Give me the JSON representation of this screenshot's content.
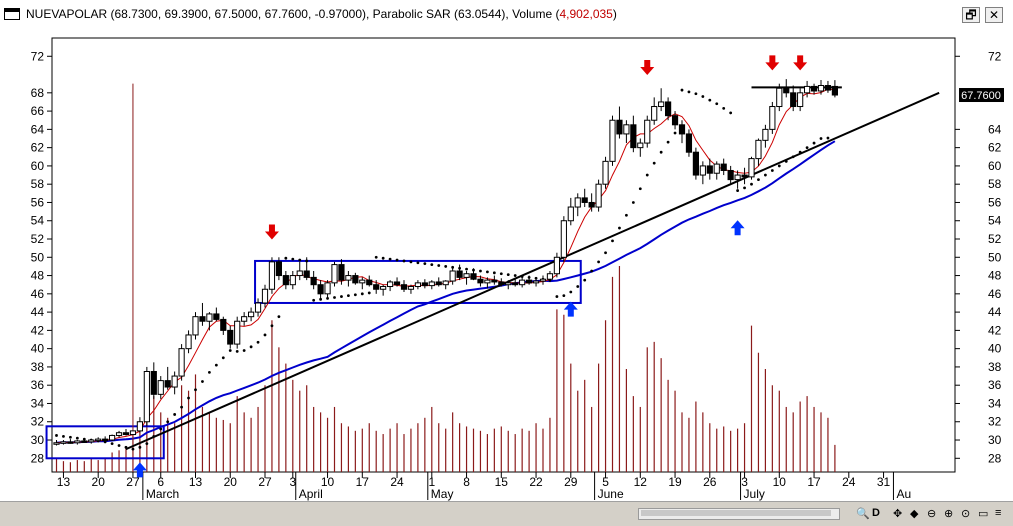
{
  "window": {
    "title_prefix": "NUEVAPOLAR (68.7300, 69.3900, 67.5000, 67.7600, -0.97000), Parabolic SAR (63.0544), Volume (",
    "title_volume": "4,902,035",
    "title_suffix": ")",
    "restore_glyph": "🗗",
    "close_glyph": "✕"
  },
  "scrollbar": {
    "zoom_glyph": "🔍",
    "d_label": "D",
    "icons": [
      "✥",
      "◆",
      "⊖",
      "⊕",
      "⊙",
      "▭",
      "≡"
    ]
  },
  "chart_data": {
    "type": "candlestick",
    "symbol": "NUEVAPOLAR",
    "last_price_label": "67.7600",
    "ylim": [
      26.5,
      74
    ],
    "y_ticks": [
      28,
      30,
      32,
      34,
      36,
      38,
      40,
      42,
      44,
      46,
      48,
      50,
      52,
      54,
      56,
      58,
      60,
      62,
      64,
      66,
      68,
      72
    ],
    "y_ticks_right": [
      28,
      30,
      32,
      34,
      36,
      38,
      40,
      42,
      44,
      46,
      48,
      50,
      52,
      54,
      56,
      58,
      60,
      62,
      64,
      72
    ],
    "x_day_ticks": [
      {
        "i": 1,
        "label": "13"
      },
      {
        "i": 6,
        "label": "20"
      },
      {
        "i": 11,
        "label": "27"
      },
      {
        "i": 15,
        "label": "6"
      },
      {
        "i": 20,
        "label": "13"
      },
      {
        "i": 25,
        "label": "20"
      },
      {
        "i": 30,
        "label": "27"
      },
      {
        "i": 34,
        "label": "3"
      },
      {
        "i": 39,
        "label": "10"
      },
      {
        "i": 44,
        "label": "17"
      },
      {
        "i": 49,
        "label": "24"
      },
      {
        "i": 54,
        "label": "1"
      },
      {
        "i": 59,
        "label": "8"
      },
      {
        "i": 64,
        "label": "15"
      },
      {
        "i": 69,
        "label": "22"
      },
      {
        "i": 74,
        "label": "29"
      },
      {
        "i": 79,
        "label": "5"
      },
      {
        "i": 84,
        "label": "12"
      },
      {
        "i": 89,
        "label": "19"
      },
      {
        "i": 94,
        "label": "26"
      },
      {
        "i": 99,
        "label": "3"
      },
      {
        "i": 104,
        "label": "10"
      },
      {
        "i": 109,
        "label": "17"
      },
      {
        "i": 114,
        "label": "24"
      },
      {
        "i": 119,
        "label": "31"
      }
    ],
    "x_month_ticks": [
      {
        "i": 13,
        "label": "March"
      },
      {
        "i": 35,
        "label": "April"
      },
      {
        "i": 54,
        "label": "May"
      },
      {
        "i": 78,
        "label": "June"
      },
      {
        "i": 99,
        "label": "July"
      },
      {
        "i": 121,
        "label": "Au"
      }
    ],
    "bars": [
      [
        29.6,
        30.0,
        29.4,
        29.7,
        12
      ],
      [
        29.7,
        30.0,
        29.5,
        29.8,
        10
      ],
      [
        29.8,
        30.1,
        29.6,
        29.7,
        9
      ],
      [
        29.7,
        30.0,
        29.5,
        29.9,
        11
      ],
      [
        29.9,
        30.2,
        29.7,
        29.8,
        10
      ],
      [
        29.8,
        30.1,
        29.6,
        30.0,
        12
      ],
      [
        30.0,
        30.3,
        29.8,
        30.1,
        11
      ],
      [
        30.1,
        30.4,
        29.9,
        30.0,
        13
      ],
      [
        30.0,
        30.6,
        29.9,
        30.5,
        18
      ],
      [
        30.5,
        31.0,
        30.3,
        30.8,
        20
      ],
      [
        30.8,
        31.2,
        30.5,
        30.6,
        22
      ],
      [
        30.6,
        69.0,
        29.5,
        31.0,
        36
      ],
      [
        31.0,
        32.5,
        30.8,
        32.0,
        40
      ],
      [
        32.0,
        38.0,
        31.5,
        37.5,
        85
      ],
      [
        37.5,
        38.5,
        34.5,
        35.0,
        70
      ],
      [
        35.0,
        37.0,
        34.5,
        36.5,
        55
      ],
      [
        36.5,
        38.0,
        35.5,
        35.8,
        50
      ],
      [
        35.8,
        37.5,
        35.0,
        37.0,
        45
      ],
      [
        37.0,
        40.5,
        36.5,
        40.0,
        80
      ],
      [
        40.0,
        42.0,
        39.5,
        41.5,
        75
      ],
      [
        41.5,
        44.0,
        41.0,
        43.5,
        90
      ],
      [
        43.5,
        45.0,
        42.5,
        43.0,
        60
      ],
      [
        43.0,
        44.0,
        42.0,
        43.8,
        55
      ],
      [
        43.8,
        44.5,
        43.0,
        43.2,
        50
      ],
      [
        43.2,
        43.5,
        41.5,
        42.0,
        48
      ],
      [
        42.0,
        42.5,
        40.0,
        40.5,
        45
      ],
      [
        40.5,
        43.5,
        40.0,
        43.0,
        70
      ],
      [
        43.0,
        44.0,
        42.5,
        43.5,
        55
      ],
      [
        43.5,
        44.5,
        43.0,
        44.0,
        50
      ],
      [
        44.0,
        45.5,
        43.5,
        45.0,
        60
      ],
      [
        45.0,
        47.0,
        44.5,
        46.5,
        80
      ],
      [
        46.5,
        50.0,
        46.0,
        49.5,
        140
      ],
      [
        49.5,
        50.0,
        47.5,
        48.0,
        115
      ],
      [
        48.0,
        48.5,
        46.5,
        47.0,
        100
      ],
      [
        47.0,
        48.5,
        46.5,
        48.0,
        85
      ],
      [
        48.0,
        49.5,
        47.5,
        48.5,
        75
      ],
      [
        48.5,
        50.0,
        47.5,
        47.8,
        80
      ],
      [
        47.8,
        48.5,
        46.5,
        47.0,
        60
      ],
      [
        47.0,
        47.5,
        45.5,
        46.0,
        55
      ],
      [
        46.0,
        47.5,
        45.5,
        47.2,
        50
      ],
      [
        47.2,
        49.5,
        46.8,
        49.2,
        60
      ],
      [
        49.2,
        49.8,
        47.0,
        47.5,
        45
      ],
      [
        47.5,
        48.5,
        46.8,
        48.0,
        42
      ],
      [
        48.0,
        48.3,
        47.0,
        47.2,
        38
      ],
      [
        47.2,
        47.8,
        46.5,
        47.5,
        40
      ],
      [
        47.5,
        48.0,
        46.8,
        47.0,
        45
      ],
      [
        47.0,
        47.5,
        46.0,
        46.5,
        38
      ],
      [
        46.5,
        47.0,
        45.8,
        46.8,
        35
      ],
      [
        46.8,
        47.5,
        46.3,
        47.3,
        40
      ],
      [
        47.3,
        47.8,
        46.8,
        47.0,
        45
      ],
      [
        47.0,
        47.5,
        46.2,
        46.5,
        35
      ],
      [
        46.5,
        47.0,
        46.0,
        46.8,
        40
      ],
      [
        46.8,
        47.5,
        46.5,
        47.2,
        45
      ],
      [
        47.2,
        47.6,
        46.6,
        46.9,
        50
      ],
      [
        46.9,
        47.5,
        46.5,
        47.3,
        60
      ],
      [
        47.3,
        47.8,
        46.8,
        47.0,
        45
      ],
      [
        47.0,
        47.5,
        46.5,
        47.4,
        40
      ],
      [
        47.4,
        49.0,
        47.0,
        48.5,
        55
      ],
      [
        48.5,
        49.2,
        47.5,
        47.8,
        45
      ],
      [
        47.8,
        48.5,
        47.0,
        48.2,
        42
      ],
      [
        48.2,
        48.8,
        47.5,
        47.6,
        40
      ],
      [
        47.6,
        48.0,
        46.8,
        47.2,
        38
      ],
      [
        47.2,
        47.8,
        46.6,
        47.5,
        35
      ],
      [
        47.5,
        48.0,
        47.0,
        47.3,
        40
      ],
      [
        47.3,
        47.7,
        46.8,
        47.0,
        42
      ],
      [
        47.0,
        47.5,
        46.5,
        47.2,
        38
      ],
      [
        47.2,
        47.6,
        46.8,
        47.0,
        35
      ],
      [
        47.0,
        47.8,
        46.7,
        47.5,
        40
      ],
      [
        47.5,
        48.0,
        47.0,
        47.2,
        38
      ],
      [
        47.2,
        47.6,
        46.8,
        47.4,
        45
      ],
      [
        47.4,
        48.0,
        47.0,
        47.6,
        40
      ],
      [
        47.6,
        48.5,
        47.3,
        48.2,
        50
      ],
      [
        48.2,
        50.5,
        47.8,
        50.0,
        150
      ],
      [
        50.0,
        54.5,
        49.5,
        54.0,
        145
      ],
      [
        54.0,
        56.5,
        53.5,
        55.5,
        100
      ],
      [
        55.5,
        57.0,
        54.5,
        56.5,
        75
      ],
      [
        56.5,
        57.5,
        55.5,
        56.0,
        85
      ],
      [
        56.0,
        57.0,
        55.0,
        55.5,
        60
      ],
      [
        55.5,
        58.5,
        55.0,
        58.0,
        100
      ],
      [
        58.0,
        61.0,
        57.5,
        60.5,
        140
      ],
      [
        60.5,
        65.5,
        60.0,
        65.0,
        180
      ],
      [
        65.0,
        66.5,
        63.0,
        63.5,
        190
      ],
      [
        63.5,
        65.0,
        62.5,
        64.5,
        95
      ],
      [
        64.5,
        65.5,
        61.5,
        62.0,
        70
      ],
      [
        62.0,
        63.0,
        61.0,
        62.5,
        60
      ],
      [
        62.5,
        65.5,
        62.0,
        65.0,
        115
      ],
      [
        65.0,
        67.5,
        64.5,
        66.5,
        120
      ],
      [
        66.5,
        68.5,
        66.0,
        67.0,
        105
      ],
      [
        67.0,
        67.5,
        65.0,
        65.5,
        85
      ],
      [
        65.5,
        66.0,
        64.0,
        64.5,
        75
      ],
      [
        64.5,
        65.0,
        62.5,
        63.5,
        55
      ],
      [
        63.5,
        64.0,
        61.0,
        61.5,
        50
      ],
      [
        61.5,
        62.0,
        58.5,
        59.0,
        65
      ],
      [
        59.0,
        60.5,
        58.0,
        60.0,
        55
      ],
      [
        60.0,
        60.8,
        58.5,
        59.2,
        45
      ],
      [
        59.2,
        60.5,
        58.5,
        60.2,
        40
      ],
      [
        60.2,
        60.8,
        59.0,
        59.5,
        42
      ],
      [
        59.5,
        60.0,
        58.0,
        58.5,
        38
      ],
      [
        58.5,
        59.5,
        57.5,
        59.0,
        40
      ],
      [
        59.0,
        59.8,
        58.0,
        58.8,
        45
      ],
      [
        58.8,
        61.0,
        58.5,
        60.8,
        135
      ],
      [
        60.8,
        63.0,
        60.0,
        62.8,
        110
      ],
      [
        62.8,
        64.5,
        62.0,
        64.0,
        95
      ],
      [
        64.0,
        67.0,
        63.5,
        66.5,
        80
      ],
      [
        66.5,
        69.0,
        66.0,
        68.5,
        75
      ],
      [
        68.5,
        69.5,
        67.5,
        68.0,
        60
      ],
      [
        68.0,
        68.8,
        66.0,
        66.5,
        55
      ],
      [
        66.5,
        68.5,
        66.0,
        68.0,
        65
      ],
      [
        68.0,
        69.3,
        67.5,
        68.7,
        70
      ],
      [
        68.7,
        69.0,
        67.8,
        68.2,
        60
      ],
      [
        68.2,
        69.4,
        67.8,
        68.8,
        55
      ],
      [
        68.8,
        69.3,
        68.0,
        68.3,
        50
      ],
      [
        68.7,
        69.39,
        67.5,
        67.76,
        25
      ]
    ],
    "moving_average_red_period": 5,
    "moving_average_blue_period": 40,
    "trendline": {
      "from": [
        10,
        29.0
      ],
      "to": [
        127,
        68.0
      ]
    },
    "resistance_line": {
      "from": [
        100,
        68.6
      ],
      "to": [
        113,
        68.6
      ]
    },
    "boxes": [
      {
        "i0": -1,
        "i1": 15,
        "y0": 28.0,
        "y1": 31.5
      },
      {
        "i0": 29,
        "i1": 75,
        "y0": 45.0,
        "y1": 49.6
      }
    ],
    "arrows_down": [
      {
        "i": 31,
        "y": 52.5
      },
      {
        "i": 85,
        "y": 70.5
      },
      {
        "i": 103,
        "y": 71.0
      },
      {
        "i": 107,
        "y": 71.0
      }
    ],
    "arrows_up": [
      {
        "i": 12,
        "y": 27.0
      },
      {
        "i": 74,
        "y": 44.6
      },
      {
        "i": 98,
        "y": 53.5
      }
    ],
    "psar": [
      [
        0,
        30.5
      ],
      [
        1,
        30.4
      ],
      [
        2,
        30.3
      ],
      [
        3,
        30.2
      ],
      [
        4,
        30.1
      ],
      [
        5,
        30.0
      ],
      [
        6,
        29.9
      ],
      [
        7,
        29.8
      ],
      [
        8,
        29.6
      ],
      [
        9,
        29.4
      ],
      [
        10,
        29.2
      ],
      [
        11,
        29.0
      ],
      [
        12,
        29.2
      ],
      [
        13,
        29.6
      ],
      [
        14,
        30.4
      ],
      [
        15,
        31.2
      ],
      [
        16,
        32.0
      ],
      [
        17,
        32.8
      ],
      [
        18,
        33.6
      ],
      [
        19,
        34.6
      ],
      [
        20,
        35.5
      ],
      [
        21,
        36.4
      ],
      [
        22,
        37.4
      ],
      [
        23,
        38.2
      ],
      [
        24,
        39.0
      ],
      [
        25,
        39.8
      ],
      [
        26,
        39.7
      ],
      [
        27,
        39.8
      ],
      [
        28,
        40.2
      ],
      [
        29,
        40.7
      ],
      [
        30,
        41.5
      ],
      [
        31,
        42.5
      ],
      [
        32,
        43.5
      ],
      [
        33,
        49.9
      ],
      [
        34,
        49.8
      ],
      [
        35,
        49.7
      ],
      [
        36,
        49.6
      ],
      [
        37,
        45.3
      ],
      [
        38,
        45.4
      ],
      [
        39,
        45.5
      ],
      [
        40,
        45.6
      ],
      [
        41,
        45.7
      ],
      [
        42,
        45.8
      ],
      [
        43,
        45.9
      ],
      [
        44,
        46.0
      ],
      [
        45,
        46.1
      ],
      [
        46,
        50.0
      ],
      [
        47,
        49.9
      ],
      [
        48,
        49.8
      ],
      [
        49,
        49.7
      ],
      [
        50,
        49.6
      ],
      [
        51,
        49.5
      ],
      [
        52,
        49.4
      ],
      [
        53,
        49.3
      ],
      [
        54,
        49.2
      ],
      [
        55,
        49.1
      ],
      [
        56,
        49.0
      ],
      [
        57,
        48.9
      ],
      [
        58,
        48.8
      ],
      [
        59,
        48.7
      ],
      [
        60,
        48.6
      ],
      [
        61,
        48.5
      ],
      [
        62,
        48.4
      ],
      [
        63,
        48.3
      ],
      [
        64,
        48.2
      ],
      [
        65,
        48.1
      ],
      [
        66,
        48.0
      ],
      [
        67,
        47.9
      ],
      [
        68,
        47.8
      ],
      [
        69,
        47.7
      ],
      [
        70,
        47.6
      ],
      [
        71,
        47.5
      ],
      [
        72,
        45.7
      ],
      [
        73,
        45.8
      ],
      [
        74,
        46.2
      ],
      [
        75,
        46.8
      ],
      [
        76,
        47.5
      ],
      [
        77,
        48.5
      ],
      [
        78,
        49.5
      ],
      [
        79,
        50.5
      ],
      [
        80,
        51.8
      ],
      [
        81,
        53.2
      ],
      [
        82,
        54.6
      ],
      [
        83,
        56.0
      ],
      [
        84,
        57.5
      ],
      [
        85,
        59.0
      ],
      [
        86,
        60.3
      ],
      [
        87,
        61.5
      ],
      [
        88,
        62.6
      ],
      [
        89,
        63.6
      ],
      [
        90,
        68.3
      ],
      [
        91,
        68.1
      ],
      [
        92,
        67.9
      ],
      [
        93,
        67.6
      ],
      [
        94,
        67.2
      ],
      [
        95,
        66.8
      ],
      [
        96,
        66.3
      ],
      [
        97,
        65.8
      ],
      [
        98,
        57.3
      ],
      [
        99,
        57.6
      ],
      [
        100,
        58.0
      ],
      [
        101,
        58.5
      ],
      [
        102,
        59.0
      ],
      [
        103,
        59.5
      ],
      [
        104,
        60.0
      ],
      [
        105,
        60.5
      ],
      [
        106,
        61.0
      ],
      [
        107,
        61.5
      ],
      [
        108,
        62.0
      ],
      [
        109,
        62.5
      ],
      [
        110,
        63.0
      ],
      [
        111,
        63.05
      ]
    ]
  }
}
